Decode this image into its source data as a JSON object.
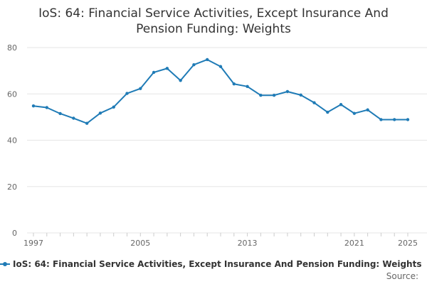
{
  "title": "IoS: 64: Financial Service Activities, Except Insurance And Pension Funding: Weights",
  "colors": {
    "series": "#1f7bb6",
    "grid": "#e6e6e6",
    "axis_text": "#666666"
  },
  "legend": {
    "label": "IoS: 64: Financial Service Activities, Except Insurance And Pension Funding: Weights"
  },
  "source": {
    "label": "Source:"
  },
  "chart_data": {
    "type": "line",
    "title": "IoS: 64: Financial Service Activities, Except Insurance And Pension Funding: Weights",
    "xlabel": "",
    "ylabel": "",
    "xlim": [
      1997,
      2025
    ],
    "ylim": [
      0,
      80
    ],
    "yticks": [
      0,
      20,
      40,
      60,
      80
    ],
    "xticks": [
      "1997",
      "2005",
      "2013",
      "2021",
      "2025"
    ],
    "grid": true,
    "legend_position": "bottom",
    "series": [
      {
        "name": "IoS: 64: Financial Service Activities, Except Insurance And Pension Funding: Weights",
        "x": [
          1997,
          1998,
          1999,
          2000,
          2001,
          2002,
          2003,
          2004,
          2005,
          2006,
          2007,
          2008,
          2009,
          2010,
          2011,
          2012,
          2013,
          2014,
          2015,
          2016,
          2017,
          2018,
          2019,
          2020,
          2021,
          2022,
          2023,
          2024,
          2025
        ],
        "values": [
          54.8,
          54.1,
          51.5,
          49.5,
          47.3,
          51.7,
          54.3,
          60.2,
          62.3,
          69.3,
          71.0,
          65.8,
          72.6,
          74.8,
          71.8,
          64.3,
          63.2,
          59.4,
          59.4,
          61.0,
          59.5,
          56.2,
          52.1,
          55.4,
          51.6,
          53.1,
          48.9,
          48.9,
          48.9
        ]
      }
    ]
  }
}
